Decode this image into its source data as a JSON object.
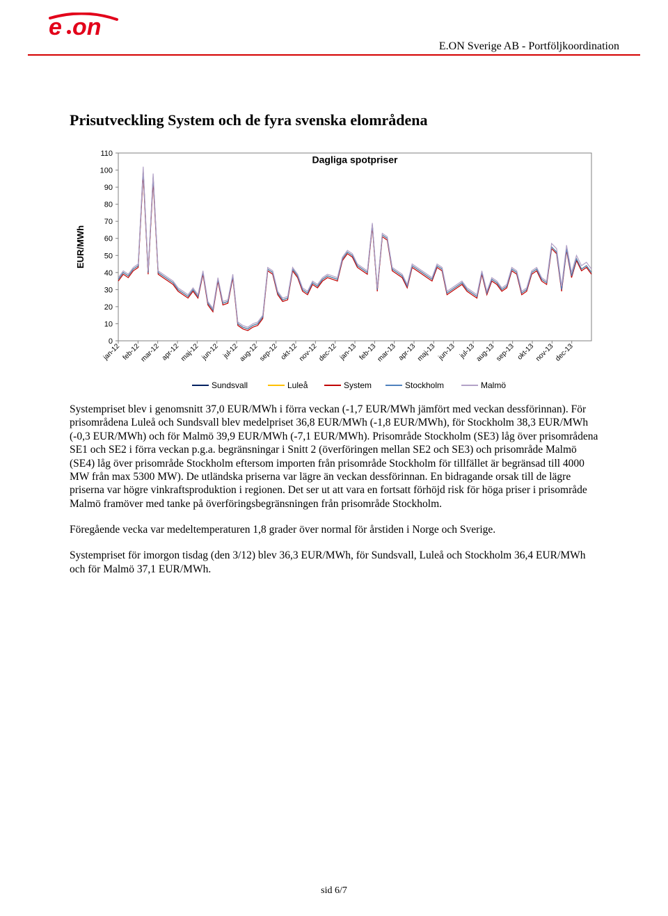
{
  "header": {
    "company": "E.ON Sverige AB - Portföljkoordination",
    "logo": {
      "main_color": "#e2001a",
      "text": "e·on"
    },
    "divider_color": "#d50000"
  },
  "section_title": "Prisutveckling System och de fyra svenska elområdena",
  "chart": {
    "type": "line",
    "title": "Dagliga spotpriser",
    "title_fontsize": 14,
    "ylabel": "EUR/MWh",
    "label_fontsize": 13,
    "ylabel_rotation": -90,
    "x_categories": [
      "jan-12",
      "feb-12",
      "mar-12",
      "apr-12",
      "maj-12",
      "jun-12",
      "jul-12",
      "aug-12",
      "sep-12",
      "okt-12",
      "nov-12",
      "dec-12",
      "jan-13",
      "feb-13",
      "mar-13",
      "apr-13",
      "maj-13",
      "jun-13",
      "jul-13",
      "aug-13",
      "sep-13",
      "okt-13",
      "nov-13",
      "dec-13"
    ],
    "x_tick_rotation": -45,
    "x_tick_fontsize": 10,
    "y_ticks": [
      0,
      10,
      20,
      30,
      40,
      50,
      60,
      70,
      80,
      90,
      100,
      110
    ],
    "y_tick_fontsize": 11,
    "ylim": [
      0,
      110
    ],
    "plot_border_color": "#808080",
    "plot_border_width": 1,
    "grid": false,
    "background_color": "#ffffff",
    "line_width": 1.2,
    "legend": {
      "position": "bottom-center",
      "items": [
        {
          "label": "Sundsvall",
          "color": "#002060"
        },
        {
          "label": "Luleå",
          "color": "#ffc000"
        },
        {
          "label": "System",
          "color": "#c00000"
        },
        {
          "label": "Stockholm",
          "color": "#4f81bd"
        },
        {
          "label": "Malmö",
          "color": "#b2a1c7"
        }
      ],
      "fontsize": 12
    },
    "series": {
      "Sundsvall": [
        36,
        40,
        38,
        42,
        44,
        100,
        40,
        96,
        40,
        38,
        36,
        34,
        30,
        28,
        26,
        30,
        26,
        40,
        22,
        18,
        36,
        22,
        23,
        38,
        10,
        8,
        7,
        9,
        10,
        14,
        42,
        40,
        28,
        24,
        25,
        42,
        38,
        30,
        28,
        34,
        32,
        36,
        38,
        37,
        36,
        48,
        52,
        50,
        44,
        42,
        40,
        68,
        30,
        62,
        60,
        42,
        40,
        38,
        32,
        44,
        42,
        40,
        38,
        36,
        44,
        42,
        28,
        30,
        32,
        34,
        30,
        28,
        26,
        40,
        28,
        36,
        34,
        30,
        32,
        42,
        40,
        28,
        30,
        40,
        42,
        36,
        34,
        55,
        52,
        30,
        54,
        38,
        48,
        42,
        44,
        40
      ],
      "Luleå": [
        36,
        40,
        38,
        42,
        44,
        100,
        40,
        96,
        40,
        38,
        36,
        34,
        30,
        28,
        26,
        30,
        26,
        40,
        22,
        18,
        36,
        22,
        23,
        38,
        10,
        8,
        7,
        9,
        10,
        14,
        42,
        40,
        28,
        24,
        25,
        42,
        38,
        30,
        28,
        34,
        32,
        36,
        38,
        37,
        36,
        48,
        52,
        50,
        44,
        42,
        40,
        68,
        30,
        62,
        60,
        42,
        40,
        38,
        32,
        44,
        42,
        40,
        38,
        36,
        44,
        42,
        28,
        30,
        32,
        34,
        30,
        28,
        26,
        40,
        28,
        36,
        34,
        30,
        32,
        42,
        40,
        28,
        30,
        40,
        42,
        36,
        34,
        55,
        52,
        30,
        54,
        38,
        48,
        42,
        44,
        40
      ],
      "System": [
        35,
        39,
        37,
        41,
        43,
        98,
        39,
        94,
        39,
        37,
        35,
        33,
        29,
        27,
        25,
        29,
        25,
        39,
        21,
        17,
        35,
        21,
        22,
        37,
        9,
        7,
        6,
        8,
        9,
        13,
        41,
        39,
        27,
        23,
        24,
        41,
        37,
        29,
        27,
        33,
        31,
        35,
        37,
        36,
        35,
        47,
        51,
        49,
        43,
        41,
        39,
        67,
        29,
        61,
        59,
        41,
        39,
        37,
        31,
        43,
        41,
        39,
        37,
        35,
        43,
        41,
        27,
        29,
        31,
        33,
        29,
        27,
        25,
        39,
        27,
        35,
        33,
        29,
        31,
        41,
        39,
        27,
        29,
        39,
        41,
        35,
        33,
        54,
        51,
        29,
        53,
        37,
        47,
        41,
        43,
        39
      ],
      "Stockholm": [
        36,
        40,
        38,
        42,
        44,
        100,
        40,
        96,
        40,
        38,
        36,
        34,
        30,
        28,
        26,
        30,
        26,
        40,
        22,
        18,
        36,
        22,
        23,
        38,
        10,
        8,
        7,
        9,
        10,
        14,
        42,
        40,
        28,
        24,
        25,
        42,
        38,
        30,
        28,
        34,
        32,
        36,
        38,
        37,
        36,
        48,
        52,
        50,
        44,
        42,
        40,
        68,
        30,
        62,
        60,
        42,
        40,
        38,
        32,
        44,
        42,
        40,
        38,
        36,
        44,
        42,
        28,
        30,
        32,
        34,
        30,
        28,
        26,
        40,
        28,
        36,
        34,
        30,
        32,
        42,
        40,
        28,
        30,
        40,
        42,
        36,
        34,
        55,
        52,
        30,
        54,
        38,
        48,
        42,
        44,
        40
      ],
      "Malmö": [
        37,
        41,
        39,
        43,
        45,
        102,
        41,
        98,
        41,
        39,
        37,
        35,
        31,
        29,
        27,
        31,
        27,
        41,
        23,
        19,
        37,
        23,
        24,
        39,
        11,
        9,
        8,
        10,
        11,
        15,
        43,
        41,
        29,
        25,
        26,
        43,
        39,
        31,
        29,
        35,
        33,
        37,
        39,
        38,
        37,
        49,
        53,
        51,
        45,
        43,
        41,
        69,
        31,
        63,
        61,
        43,
        41,
        39,
        33,
        45,
        43,
        41,
        39,
        37,
        45,
        43,
        29,
        31,
        33,
        35,
        31,
        29,
        27,
        41,
        29,
        37,
        35,
        31,
        33,
        43,
        41,
        29,
        31,
        41,
        43,
        37,
        35,
        57,
        54,
        32,
        56,
        40,
        50,
        44,
        46,
        42
      ]
    }
  },
  "paragraphs": [
    "Systempriset blev i genomsnitt 37,0 EUR/MWh i förra veckan (-1,7 EUR/MWh jämfört med veckan dessförinnan). För prisområdena Luleå och Sundsvall blev medelpriset 36,8 EUR/MWh (-1,8 EUR/MWh), för Stockholm 38,3 EUR/MWh (-0,3 EUR/MWh) och för Malmö 39,9 EUR/MWh (-7,1 EUR/MWh). Prisområde Stockholm (SE3) låg över prisområdena SE1 och SE2 i förra veckan p.g.a. begränsningar i Snitt 2 (överföringen mellan SE2 och SE3) och prisområde Malmö (SE4) låg över prisområde Stockholm eftersom importen från prisområde Stockholm för tillfället är begränsad till 4000 MW från max 5300 MW). De utländska priserna var lägre än veckan dessförinnan. En bidragande orsak till de lägre priserna var högre vinkraftsproduktion i regionen. Det ser ut att vara en fortsatt förhöjd risk för höga priser i prisområde Malmö framöver med tanke på överföringsbegränsningen från prisområde Stockholm.",
    "Föregående vecka var medeltemperaturen 1,8 grader över normal för årstiden i Norge och Sverige.",
    "Systempriset för imorgon tisdag (den 3/12) blev 36,3 EUR/MWh, för Sundsvall, Luleå och Stockholm 36,4 EUR/MWh och för Malmö 37,1 EUR/MWh."
  ],
  "footer": "sid 6/7"
}
